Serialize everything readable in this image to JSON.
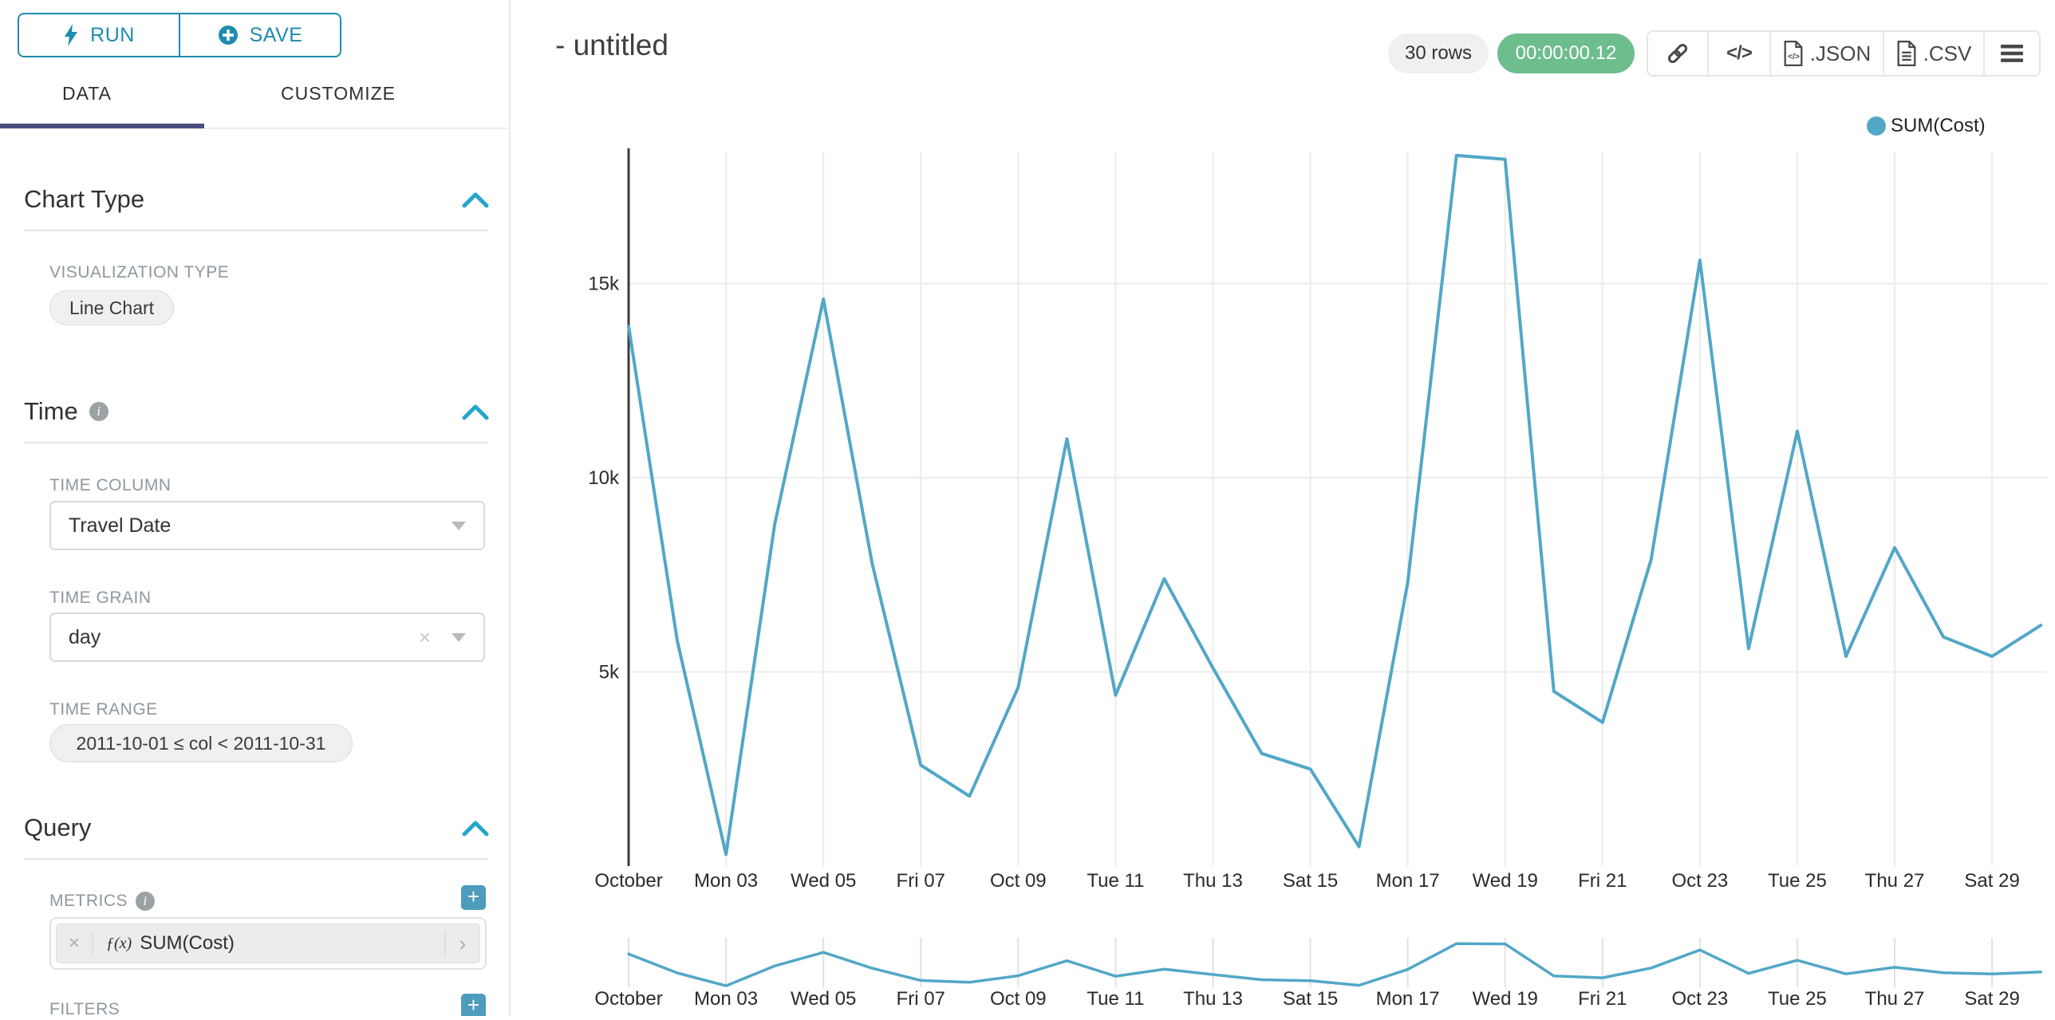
{
  "ui_colors": {
    "accent_teal": "#1e8caf",
    "bright_teal": "#26a5c9",
    "tab_indicator": "#474d7d",
    "timer_green": "#6dbd8d",
    "plus_button": "#4d9bbd",
    "line": "#52a7c7"
  },
  "run_save": {
    "run": "RUN",
    "save": "SAVE"
  },
  "tabs": {
    "data": "DATA",
    "customize": "CUSTOMIZE"
  },
  "panel": {
    "chart_type": {
      "title": "Chart Type",
      "viz_label": "VISUALIZATION TYPE",
      "viz_value": "Line Chart"
    },
    "time": {
      "title": "Time",
      "column_label": "TIME COLUMN",
      "column_value": "Travel Date",
      "grain_label": "TIME GRAIN",
      "grain_value": "day",
      "range_label": "TIME RANGE",
      "range_value": "2011-10-01 ≤ col < 2011-10-31"
    },
    "query": {
      "title": "Query",
      "metrics_label": "METRICS",
      "metric_fx": "ƒ(x)",
      "metric_value": "SUM(Cost)",
      "filters_label": "FILTERS"
    }
  },
  "header": {
    "title": "- untitled",
    "rows_badge": "30 rows",
    "timer": "00:00:00.12",
    "code_icon_glyph": "</>",
    "json_label": ".JSON",
    "csv_label": ".CSV"
  },
  "legend": {
    "series": "SUM(Cost)"
  },
  "chart_data": {
    "type": "line",
    "title": "",
    "xlabel": "",
    "ylabel": "",
    "x_days": [
      1,
      2,
      3,
      4,
      5,
      6,
      7,
      8,
      9,
      10,
      11,
      12,
      13,
      14,
      15,
      16,
      17,
      18,
      19,
      20,
      21,
      22,
      23,
      24,
      25,
      26,
      27,
      28,
      29,
      30
    ],
    "series": [
      {
        "name": "SUM(Cost)",
        "values": [
          13900,
          5800,
          300,
          8800,
          14600,
          7800,
          2600,
          1800,
          4600,
          11000,
          4400,
          7400,
          5100,
          2900,
          2500,
          500,
          7300,
          18300,
          18200,
          4500,
          3700,
          7900,
          15600,
          5600,
          11200,
          5400,
          8200,
          5900,
          5400,
          6200
        ]
      }
    ],
    "x_tick_labels": [
      "October",
      "Mon 03",
      "Wed 05",
      "Fri 07",
      "Oct 09",
      "Tue 11",
      "Thu 13",
      "Sat 15",
      "Mon 17",
      "Wed 19",
      "Fri 21",
      "Oct 23",
      "Tue 25",
      "Thu 27",
      "Sat 29"
    ],
    "y_ticks": [
      {
        "value": 5000,
        "label": "5k"
      },
      {
        "value": 10000,
        "label": "10k"
      },
      {
        "value": 15000,
        "label": "15k"
      }
    ],
    "ylim": [
      0,
      18400
    ],
    "grid": true,
    "legend_position": "top-right",
    "line_color": "#52a7c7",
    "has_range_brush_mini_chart": true
  }
}
